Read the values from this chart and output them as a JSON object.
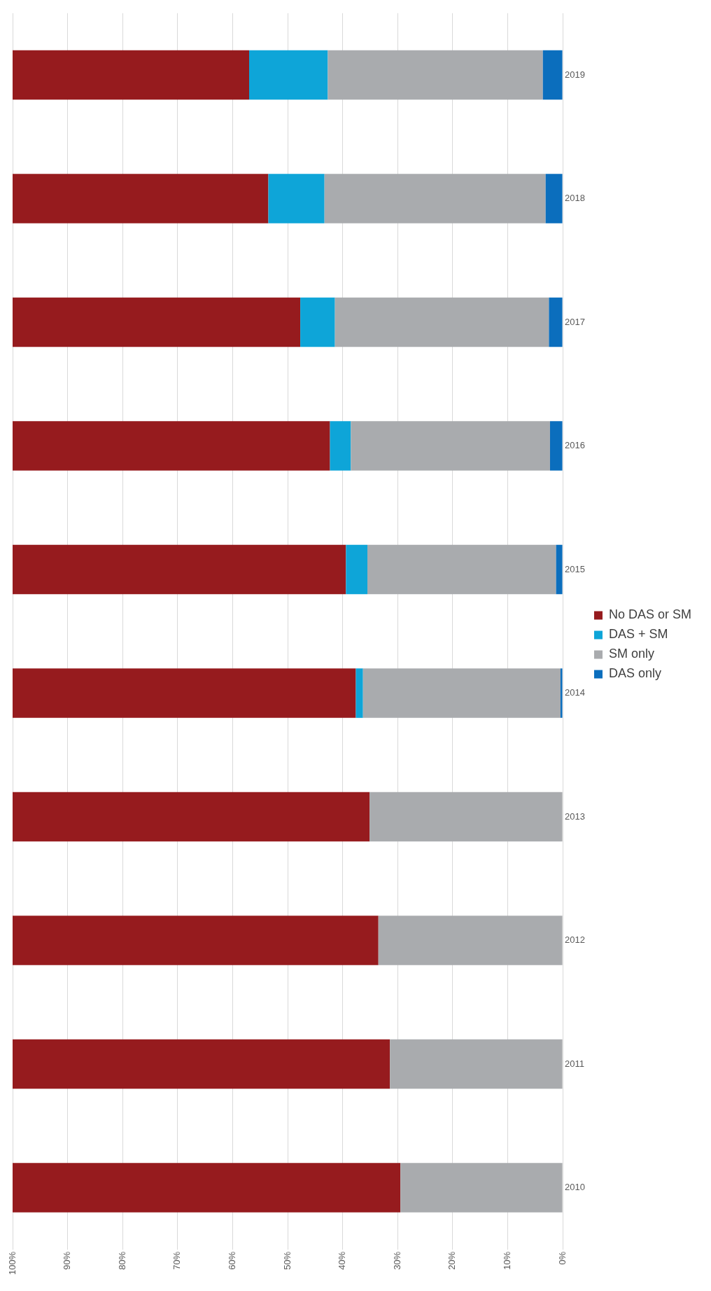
{
  "chart_data": {
    "type": "bar",
    "orientation": "horizontal",
    "stacked": true,
    "categories": [
      "2019",
      "2018",
      "2017",
      "2016",
      "2015",
      "2014",
      "2013",
      "2012",
      "2011",
      "2010"
    ],
    "series": [
      {
        "name": "DAS only",
        "color": "#0b6ebd",
        "values": [
          3.6,
          3.1,
          2.5,
          2.3,
          1.2,
          0.4,
          0,
          0,
          0,
          0
        ]
      },
      {
        "name": "SM only",
        "color": "#a9abae",
        "values": [
          39.1,
          40.2,
          38.9,
          36.2,
          34.3,
          35.9,
          35.1,
          33.5,
          31.4,
          29.5
        ]
      },
      {
        "name": "DAS + SM",
        "color": "#0ea5d8",
        "values": [
          14.3,
          10.2,
          6.3,
          3.8,
          3.9,
          1.3,
          0,
          0,
          0,
          0
        ]
      },
      {
        "name": "No DAS or SM",
        "color": "#961b1e",
        "values": [
          43,
          46.5,
          52.3,
          57.7,
          60.6,
          62.4,
          64.9,
          66.5,
          68.6,
          70.5
        ]
      }
    ],
    "xlim": [
      100,
      0
    ],
    "xticks": [
      {
        "value": 100,
        "label": "100%"
      },
      {
        "value": 90,
        "label": "90%"
      },
      {
        "value": 80,
        "label": "80%"
      },
      {
        "value": 70,
        "label": "70%"
      },
      {
        "value": 60,
        "label": "60%"
      },
      {
        "value": 50,
        "label": "50%"
      },
      {
        "value": 40,
        "label": "40%"
      },
      {
        "value": 30,
        "label": "30%"
      },
      {
        "value": 20,
        "label": "20%"
      },
      {
        "value": 10,
        "label": "10%"
      },
      {
        "value": 0,
        "label": "0%"
      }
    ],
    "grid": "x",
    "legend": "right"
  }
}
